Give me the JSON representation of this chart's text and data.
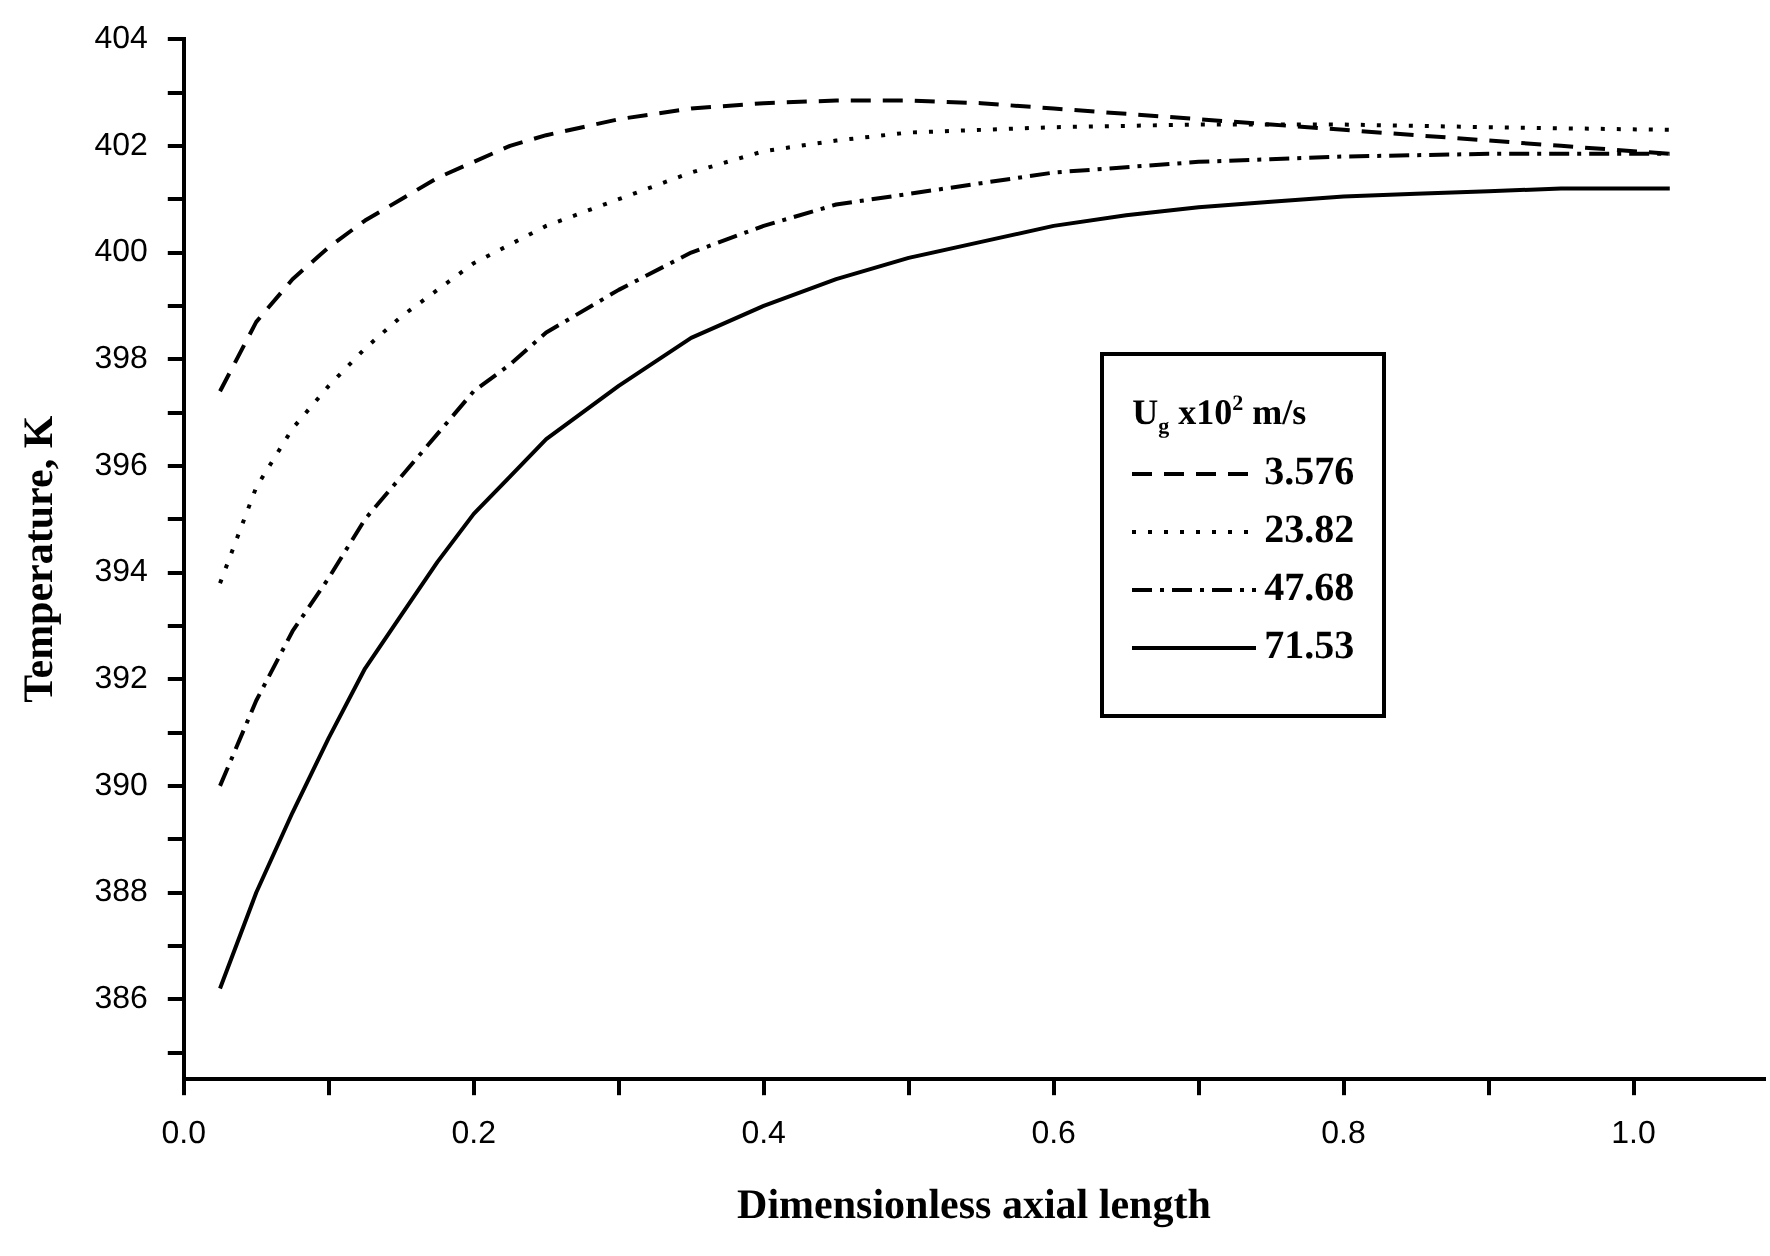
{
  "chart_data": {
    "type": "line",
    "xlabel": "Dimensionless axial length",
    "ylabel": "Temperature, K",
    "legend_title": "U$_{g}$ x10$^{2}$ m/s",
    "legend": "right",
    "grid": false,
    "marker": "none",
    "xlim": [
      0,
      1.09
    ],
    "ylim": [
      384.5,
      404
    ],
    "xticks": [
      {
        "value": 0,
        "label": "0.0"
      },
      {
        "value": 0.1,
        "label": null
      },
      {
        "value": 0.2,
        "label": "0.2"
      },
      {
        "value": 0.3,
        "label": null
      },
      {
        "value": 0.4,
        "label": "0.4"
      },
      {
        "value": 0.5,
        "label": null
      },
      {
        "value": 0.6,
        "label": "0.6"
      },
      {
        "value": 0.7,
        "label": null
      },
      {
        "value": 0.8,
        "label": "0.8"
      },
      {
        "value": 0.9,
        "label": null
      },
      {
        "value": 1,
        "label": "1.0"
      }
    ],
    "yticks": [
      {
        "value": 385,
        "label": null
      },
      386,
      {
        "value": 387,
        "label": null
      },
      388,
      {
        "value": 389,
        "label": null
      },
      390,
      {
        "value": 391,
        "label": null
      },
      392,
      {
        "value": 393,
        "label": null
      },
      394,
      {
        "value": 395,
        "label": null
      },
      396,
      {
        "value": 397,
        "label": null
      },
      398,
      {
        "value": 399,
        "label": null
      },
      400,
      {
        "value": 401,
        "label": null
      },
      402,
      {
        "value": 403,
        "label": null
      },
      404
    ],
    "series": [
      {
        "name": "3.576",
        "color": "#000000",
        "line_style": "dashed",
        "x": [
          0.025,
          0.05,
          0.075,
          0.1,
          0.125,
          0.15,
          0.175,
          0.2,
          0.225,
          0.25,
          0.275,
          0.3,
          0.35,
          0.4,
          0.45,
          0.5,
          0.55,
          0.6,
          0.65,
          0.7,
          0.75,
          0.8,
          0.85,
          0.9,
          0.95,
          1.0,
          1.025
        ],
        "values": [
          397.4,
          398.7,
          399.5,
          400.1,
          400.6,
          401.0,
          401.4,
          401.7,
          402.0,
          402.2,
          402.35,
          402.5,
          402.7,
          402.8,
          402.85,
          402.85,
          402.8,
          402.7,
          402.6,
          402.5,
          402.4,
          402.3,
          402.2,
          402.1,
          402.0,
          401.9,
          401.85
        ]
      },
      {
        "name": "23.82",
        "color": "#000000",
        "line_style": "dotted",
        "x": [
          0.025,
          0.05,
          0.075,
          0.1,
          0.125,
          0.15,
          0.175,
          0.2,
          0.25,
          0.3,
          0.35,
          0.4,
          0.45,
          0.5,
          0.6,
          0.7,
          0.8,
          0.9,
          1.025
        ],
        "values": [
          393.8,
          395.6,
          396.7,
          397.5,
          398.2,
          398.8,
          399.3,
          399.8,
          400.5,
          401.0,
          401.5,
          401.9,
          402.1,
          402.25,
          402.35,
          402.4,
          402.4,
          402.35,
          402.3
        ]
      },
      {
        "name": "47.68",
        "color": "#000000",
        "line_style": "dashdot",
        "x": [
          0.025,
          0.05,
          0.075,
          0.1,
          0.125,
          0.15,
          0.175,
          0.2,
          0.225,
          0.25,
          0.3,
          0.35,
          0.4,
          0.45,
          0.5,
          0.55,
          0.6,
          0.65,
          0.7,
          0.8,
          0.9,
          1.025
        ],
        "values": [
          390.0,
          391.6,
          392.9,
          393.9,
          395.0,
          395.8,
          396.6,
          397.4,
          397.9,
          398.5,
          399.3,
          400.0,
          400.5,
          400.9,
          401.1,
          401.3,
          401.5,
          401.6,
          401.7,
          401.8,
          401.85,
          401.85
        ]
      },
      {
        "name": "71.53",
        "color": "#000000",
        "line_style": "solid",
        "x": [
          0.025,
          0.05,
          0.075,
          0.1,
          0.125,
          0.15,
          0.175,
          0.2,
          0.225,
          0.25,
          0.3,
          0.35,
          0.4,
          0.45,
          0.5,
          0.55,
          0.6,
          0.65,
          0.7,
          0.75,
          0.8,
          0.85,
          0.9,
          0.95,
          1.025
        ],
        "values": [
          386.2,
          388.0,
          389.5,
          390.9,
          392.2,
          393.2,
          394.2,
          395.1,
          395.8,
          396.5,
          397.5,
          398.4,
          399.0,
          399.5,
          399.9,
          400.2,
          400.5,
          400.7,
          400.85,
          400.95,
          401.05,
          401.1,
          401.15,
          401.2,
          401.2
        ]
      }
    ]
  }
}
